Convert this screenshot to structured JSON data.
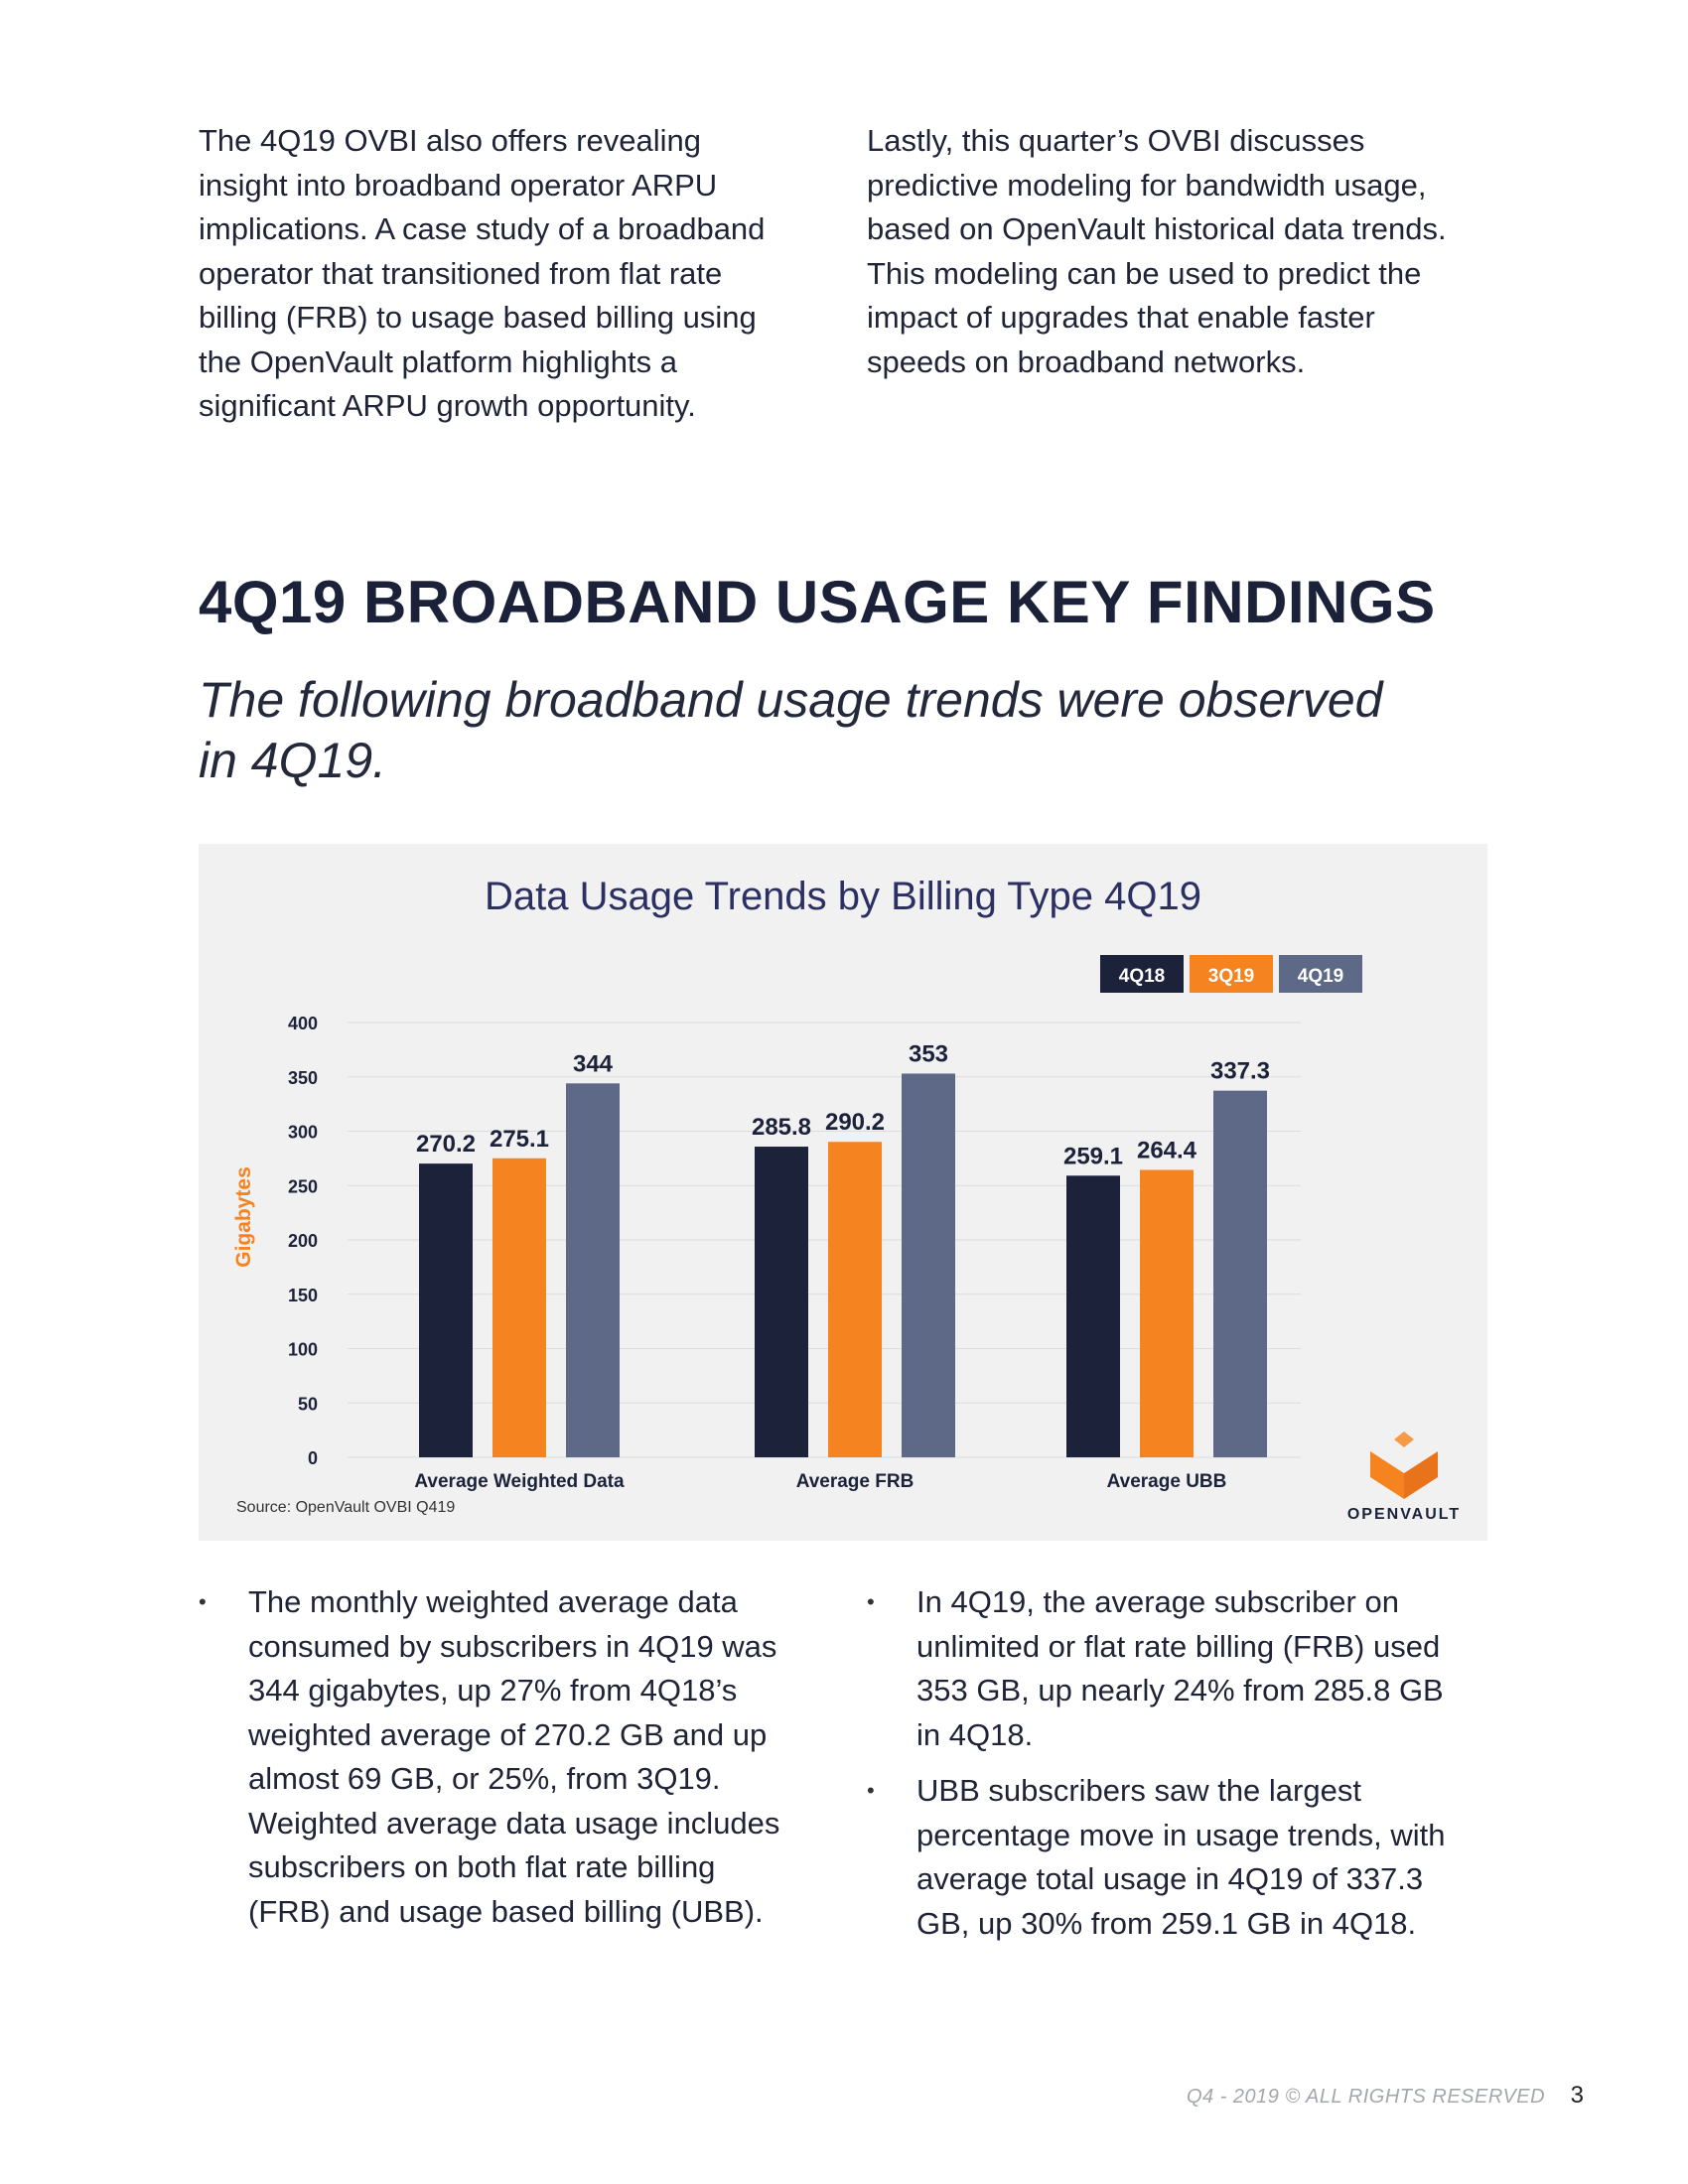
{
  "intro": {
    "left": "The 4Q19 OVBI also offers revealing insight into broadband operator ARPU implications. A case study of a broadband operator that transitioned from flat rate billing (FRB) to usage based billing using the OpenVault platform highlights a significant ARPU growth opportunity.",
    "right": "Lastly, this quarter’s OVBI discusses predictive modeling for bandwidth usage, based on OpenVault historical data trends. This modeling can be used to predict the impact of upgrades that enable faster speeds on broadband networks."
  },
  "heading": "4Q19 BROADBAND USAGE KEY FINDINGS",
  "subheading": "The following broadband usage trends were observed in 4Q19.",
  "chart_data": {
    "type": "bar",
    "title": "Data Usage Trends by Billing Type 4Q19",
    "categories": [
      "Average Weighted Data",
      "Average FRB",
      "Average UBB"
    ],
    "series": [
      {
        "name": "4Q18",
        "color": "#1b2239",
        "values": [
          270.2,
          285.8,
          259.1
        ]
      },
      {
        "name": "3Q19",
        "color": "#f5831f",
        "values": [
          275.1,
          290.2,
          264.4
        ]
      },
      {
        "name": "4Q19",
        "color": "#5e6887",
        "values": [
          344,
          353,
          337.3
        ]
      }
    ],
    "data_labels": [
      [
        "270.2",
        "285.8",
        "259.1"
      ],
      [
        "275.1",
        "290.2",
        "264.4"
      ],
      [
        "344",
        "353",
        "337.3"
      ]
    ],
    "xlabel": "",
    "ylabel": "Gigabytes",
    "ylim": [
      0,
      400
    ],
    "yticks": [
      0,
      50,
      100,
      150,
      200,
      250,
      300,
      350,
      400
    ],
    "grid": true,
    "legend": "top-right",
    "source": "Source: OpenVault OVBI Q419"
  },
  "logo": {
    "text": "OPENVAULT",
    "accent_color": "#f5831f"
  },
  "colors": {
    "dark_navy": "#1b2239",
    "orange": "#f5831f",
    "slate": "#5e6887"
  },
  "bullets": {
    "left": [
      "The monthly weighted average data consumed by subscribers in 4Q19 was 344 gigabytes, up 27% from 4Q18’s weighted average of 270.2 GB and up almost 69 GB, or 25%, from 3Q19. Weighted average data usage includes subscribers on both flat rate billing (FRB) and usage based billing (UBB)."
    ],
    "right": [
      "In 4Q19, the average subscriber on unlimited or flat rate billing (FRB) used 353 GB, up nearly 24% from 285.8 GB in 4Q18.",
      "UBB subscribers saw the largest percentage move in usage trends, with average total usage in 4Q19 of 337.3 GB, up 30% from 259.1 GB in 4Q18."
    ],
    "marker": "•"
  },
  "footer": {
    "text": "Q4 - 2019 © ALL RIGHTS RESERVED",
    "page": "3"
  }
}
